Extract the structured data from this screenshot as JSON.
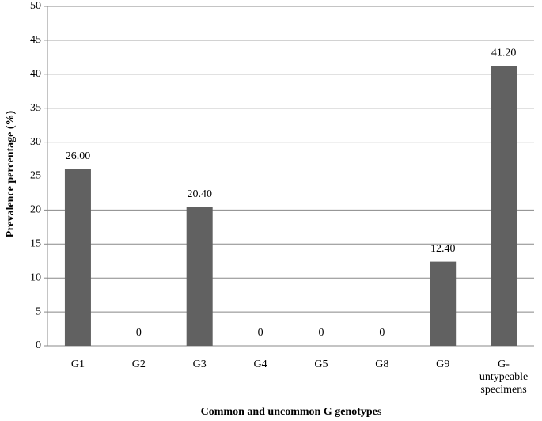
{
  "chart_data": {
    "type": "bar",
    "xlabel": "Common and uncommon G genotypes",
    "ylabel": "Prevalence percentage (%)",
    "categories": [
      "G1",
      "G2",
      "G3",
      "G4",
      "G5",
      "G8",
      "G9",
      "G-untypeable specimens"
    ],
    "values": [
      26.0,
      0,
      20.4,
      0,
      0,
      0,
      12.4,
      41.2
    ],
    "value_labels": [
      "26.00",
      "0",
      "20.40",
      "0",
      "0",
      "0",
      "12.40",
      "41.20"
    ],
    "color": "#616161",
    "ylim": [
      0,
      50
    ],
    "yticks": [
      0,
      5,
      10,
      15,
      20,
      25,
      30,
      35,
      40,
      45,
      50
    ],
    "grid": true
  }
}
